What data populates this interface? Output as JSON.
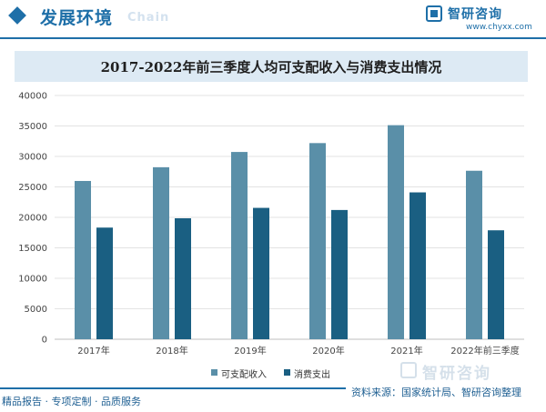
{
  "header": {
    "title": "发展环境",
    "subtitle": "Chain",
    "logo_name": "智研咨询",
    "logo_url": "www.chyxx.com"
  },
  "chart_data": {
    "type": "bar",
    "title": "2017-2022年前三季度人均可支配收入与消费支出情况",
    "xlabel": "",
    "ylabel": "",
    "categories": [
      "2017年",
      "2018年",
      "2019年",
      "2020年",
      "2021年",
      "2022年前三季度"
    ],
    "series": [
      {
        "name": "可支配收入",
        "values": [
          25974,
          28228,
          30733,
          32189,
          35128,
          27650
        ],
        "color": "#5a8fa8"
      },
      {
        "name": "消费支出",
        "values": [
          18322,
          19853,
          21559,
          21210,
          24100,
          17878
        ],
        "color": "#1a5f82"
      }
    ],
    "ylim": [
      0,
      40000
    ],
    "yticks": [
      0,
      5000,
      10000,
      15000,
      20000,
      25000,
      30000,
      35000,
      40000
    ],
    "grid": true,
    "legend_position": "bottom"
  },
  "watermark": {
    "text": "智研咨询"
  },
  "footer": {
    "source": "资料来源：国家统计局、智研咨询整理",
    "tagline": "精品报告 · 专项定制 · 品质服务"
  }
}
